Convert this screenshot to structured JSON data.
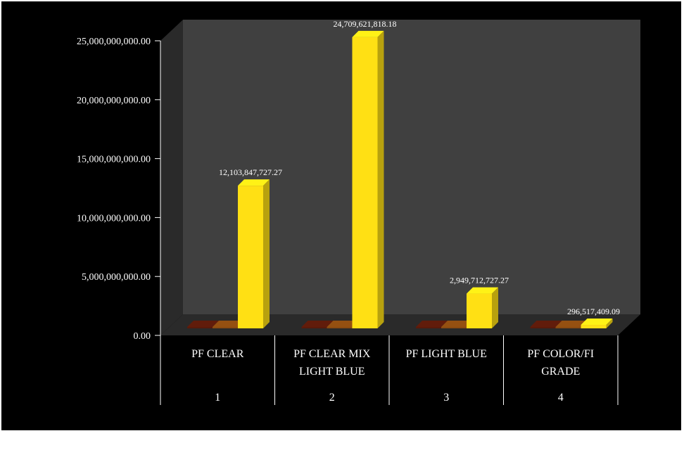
{
  "chart_data": {
    "type": "bar",
    "categories": [
      "PF CLEAR",
      "PF CLEAR MIX LIGHT BLUE",
      "PF LIGHT BLUE",
      "PF COLOR/FI GRADE"
    ],
    "category_lines": [
      [
        "PF CLEAR"
      ],
      [
        "PF CLEAR MIX",
        "LIGHT BLUE"
      ],
      [
        "PF LIGHT BLUE"
      ],
      [
        "PF COLOR/FI",
        "GRADE"
      ]
    ],
    "category_index": [
      "1",
      "2",
      "3",
      "4"
    ],
    "series": [
      {
        "values": [
          0,
          0,
          0,
          0
        ],
        "color": "#5a1a0a"
      },
      {
        "values": [
          0,
          0,
          0,
          0
        ],
        "color": "#8a4a10"
      },
      {
        "values": [
          12103847727.27,
          24709621818.18,
          2949712727.27,
          296517409.09
        ],
        "color": "#ffe014"
      }
    ],
    "data_labels": [
      "12,103,847,727.27",
      "24,709,621,818.18",
      "2,949,712,727.27",
      "296,517,409.09"
    ],
    "yticks": [
      0,
      5000000000,
      10000000000,
      15000000000,
      20000000000,
      25000000000
    ],
    "ytick_labels": [
      "0.00",
      "5,000,000,000.00",
      "10,000,000,000.00",
      "15,000,000,000.00",
      "20,000,000,000.00",
      "25,000,000,000.00"
    ],
    "ylim": [
      0,
      25000000000
    ],
    "title": "",
    "xlabel": "",
    "ylabel": "",
    "grid": false,
    "legend": "none",
    "background": "#000000",
    "wall_color": "#404040",
    "floor_color": "#2a2a2a"
  }
}
